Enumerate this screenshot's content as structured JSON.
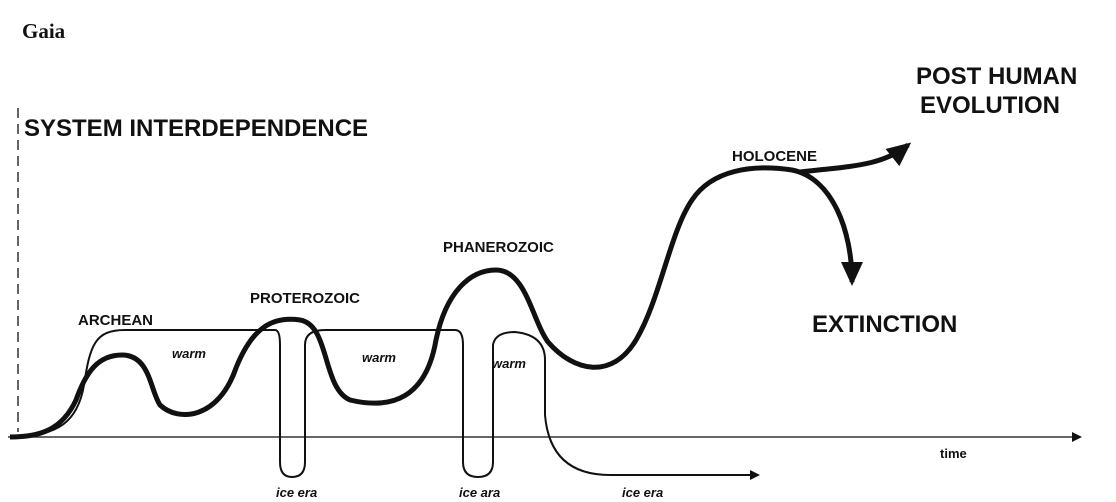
{
  "title": "Gaia",
  "axes": {
    "y_label": "SYSTEM INTERDEPENDENCE",
    "x_label": "time"
  },
  "eras": {
    "archean": "ARCHEAN",
    "proterozoic": "PROTEROZOIC",
    "phanerozoic": "PHANEROZOIC",
    "holocene": "HOLOCENE"
  },
  "warm_labels": [
    "warm",
    "warm",
    "warm"
  ],
  "ice_labels": [
    "ice era",
    "ice ara",
    "ice era"
  ],
  "outcomes": {
    "post_human": [
      "POST HUMAN",
      "EVOLUTION"
    ],
    "extinction": "EXTINCTION"
  }
}
